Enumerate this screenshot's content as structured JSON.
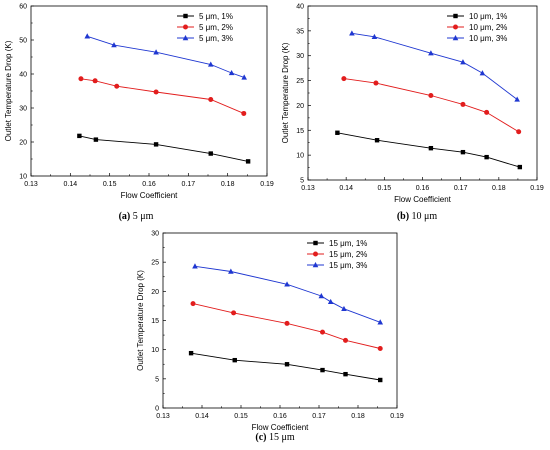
{
  "colors": {
    "1%": "#000000",
    "2%": "#e21d1d",
    "3%": "#1f37d1"
  },
  "chart_data": [
    {
      "type": "line",
      "caption_letter": "(a)",
      "caption_text": "5 μm",
      "xlabel": "Flow Coefficient",
      "ylabel": "Outlet Temperature Drop (K)",
      "xlim": [
        0.13,
        0.19
      ],
      "ylim": [
        10,
        60
      ],
      "xticks": [
        0.13,
        0.14,
        0.15,
        0.16,
        0.17,
        0.18,
        0.19
      ],
      "xtick_labels": [
        "0.13",
        "0.14",
        "0.15",
        "0.16",
        "0.17",
        "0.18",
        "0.19"
      ],
      "yticks": [
        10,
        20,
        30,
        40,
        50,
        60
      ],
      "ytick_labels": [
        "10",
        "20",
        "30",
        "40",
        "50",
        "60"
      ],
      "legend_position": "top-right",
      "series": [
        {
          "name": "5 μm, 1%",
          "marker": "square",
          "color_key": "1%",
          "x": [
            0.1423,
            0.1465,
            0.1618,
            0.1757,
            0.1852
          ],
          "y": [
            21.8,
            20.7,
            19.3,
            16.6,
            14.3
          ]
        },
        {
          "name": "5 μm, 2%",
          "marker": "circle",
          "color_key": "2%",
          "x": [
            0.1427,
            0.1463,
            0.1518,
            0.1618,
            0.1757,
            0.1841
          ],
          "y": [
            38.6,
            38.0,
            36.4,
            34.7,
            32.5,
            28.4
          ]
        },
        {
          "name": "5 μm, 3%",
          "marker": "triangle",
          "color_key": "3%",
          "x": [
            0.1443,
            0.1511,
            0.1618,
            0.1757,
            0.181,
            0.1842
          ],
          "y": [
            51.1,
            48.5,
            46.4,
            42.8,
            40.3,
            39.0
          ]
        }
      ]
    },
    {
      "type": "line",
      "caption_letter": "(b)",
      "caption_text": "10 μm",
      "xlabel": "Flow Coefficient",
      "ylabel": "Outlet Temperature Drop (K)",
      "xlim": [
        0.13,
        0.19
      ],
      "ylim": [
        5,
        40
      ],
      "xticks": [
        0.13,
        0.14,
        0.15,
        0.16,
        0.17,
        0.18,
        0.19
      ],
      "xtick_labels": [
        "0.13",
        "0.14",
        "0.15",
        "0.16",
        "0.17",
        "0.18",
        "0.19"
      ],
      "yticks": [
        5,
        10,
        15,
        20,
        25,
        30,
        35,
        40
      ],
      "ytick_labels": [
        "5",
        "10",
        "15",
        "20",
        "25",
        "30",
        "35",
        "40"
      ],
      "legend_position": "top-right",
      "series": [
        {
          "name": "10 μm, 1%",
          "marker": "square",
          "color_key": "1%",
          "x": [
            0.1377,
            0.1481,
            0.1622,
            0.1706,
            0.1768,
            0.1855
          ],
          "y": [
            14.5,
            13.0,
            11.4,
            10.6,
            9.6,
            7.6
          ]
        },
        {
          "name": "10 μm, 2%",
          "marker": "circle",
          "color_key": "2%",
          "x": [
            0.1394,
            0.1478,
            0.1622,
            0.1706,
            0.1768,
            0.1852
          ],
          "y": [
            25.4,
            24.5,
            22.0,
            20.2,
            18.6,
            14.7
          ]
        },
        {
          "name": "10 μm, 3%",
          "marker": "triangle",
          "color_key": "3%",
          "x": [
            0.1415,
            0.1474,
            0.1622,
            0.1706,
            0.1757,
            0.1848
          ],
          "y": [
            34.5,
            33.8,
            30.5,
            28.7,
            26.5,
            21.2
          ]
        }
      ]
    },
    {
      "type": "line",
      "caption_letter": "(c)",
      "caption_text": "15 μm",
      "xlabel": "Flow Coefficient",
      "ylabel": "Outlet Temperature Drop (K)",
      "xlim": [
        0.13,
        0.19
      ],
      "ylim": [
        0,
        30
      ],
      "xticks": [
        0.13,
        0.14,
        0.15,
        0.16,
        0.17,
        0.18,
        0.19
      ],
      "xtick_labels": [
        "0.13",
        "0.14",
        "0.15",
        "0.16",
        "0.17",
        "0.18",
        "0.19"
      ],
      "yticks": [
        0,
        5,
        10,
        15,
        20,
        25,
        30
      ],
      "ytick_labels": [
        "0",
        "5",
        "10",
        "15",
        "20",
        "25",
        "30"
      ],
      "legend_position": "top-right",
      "series": [
        {
          "name": "15 μm, 1%",
          "marker": "square",
          "color_key": "1%",
          "x": [
            0.1372,
            0.1484,
            0.1618,
            0.1709,
            0.1768,
            0.1857
          ],
          "y": [
            9.4,
            8.2,
            7.5,
            6.5,
            5.8,
            4.8
          ]
        },
        {
          "name": "15 μm, 2%",
          "marker": "circle",
          "color_key": "2%",
          "x": [
            0.1377,
            0.1481,
            0.1618,
            0.1709,
            0.1768,
            0.1857
          ],
          "y": [
            17.9,
            16.3,
            14.5,
            13.0,
            11.6,
            10.2
          ]
        },
        {
          "name": "15 μm, 3%",
          "marker": "triangle",
          "color_key": "3%",
          "x": [
            0.1382,
            0.1474,
            0.1618,
            0.1706,
            0.173,
            0.1764,
            0.1857
          ],
          "y": [
            24.3,
            23.4,
            21.2,
            19.2,
            18.2,
            17.0,
            14.7
          ]
        }
      ]
    }
  ]
}
